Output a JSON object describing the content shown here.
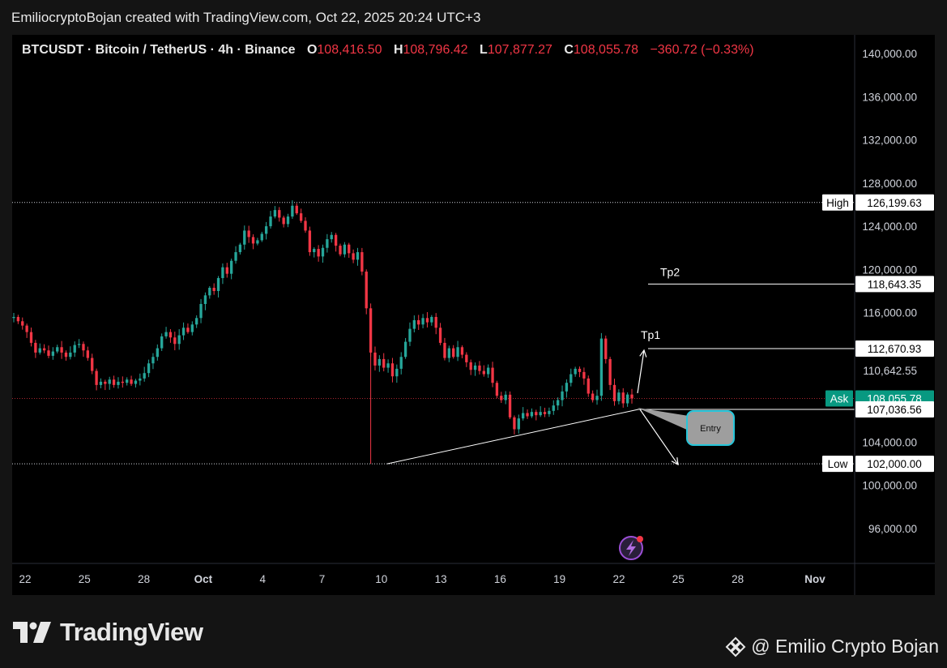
{
  "caption": "EmiliocryptoBojan created with TradingView.com, Oct 22, 2025 20:24 UTC+3",
  "legend": {
    "symbol": "BTCUSDT · Bitcoin / TetherUS · 4h · Binance",
    "o_label": "O",
    "o_value": "108,416.50",
    "h_label": "H",
    "h_value": "108,796.42",
    "l_label": "L",
    "l_value": "107,877.27",
    "c_label": "C",
    "c_value": "108,055.78",
    "change": "−360.72 (−0.33%)"
  },
  "colors": {
    "up": "#26a69a",
    "down": "#f23645",
    "background": "#000000",
    "page": "#141414",
    "ask": "#089981"
  },
  "chart_data": {
    "type": "candlestick",
    "timeframe": "4h",
    "x_ticks": [
      "22",
      "25",
      "28",
      "Oct",
      "4",
      "7",
      "10",
      "13",
      "16",
      "19",
      "22",
      "25",
      "28",
      "Nov"
    ],
    "y_ticks": [
      "140,000.00",
      "136,000.00",
      "132,000.00",
      "128,000.00",
      "124,000.00",
      "120,000.00",
      "116,000.00",
      "110,642.55",
      "104,000.00",
      "100,000.00",
      "96,000.00"
    ],
    "ylim": [
      94000,
      141500
    ],
    "closes": [
      [
        115500,
        115600
      ],
      [
        115600,
        115200
      ],
      [
        115200,
        114800
      ],
      [
        114800,
        114200
      ],
      [
        114200,
        113200
      ],
      [
        113200,
        112300
      ],
      [
        112300,
        112700
      ],
      [
        112700,
        112500
      ],
      [
        112500,
        112000
      ],
      [
        112000,
        112400
      ],
      [
        112400,
        112800
      ],
      [
        112800,
        112300
      ],
      [
        112300,
        111900
      ],
      [
        111900,
        112300
      ],
      [
        112300,
        113000
      ],
      [
        113000,
        113100
      ],
      [
        113100,
        112500
      ],
      [
        112500,
        111800
      ],
      [
        111800,
        110600
      ],
      [
        110600,
        109300
      ],
      [
        109300,
        109600
      ],
      [
        109600,
        109400
      ],
      [
        109400,
        109800
      ],
      [
        109800,
        109300
      ],
      [
        109300,
        109600
      ],
      [
        109600,
        109500
      ],
      [
        109500,
        109800
      ],
      [
        109800,
        109400
      ],
      [
        109400,
        109700
      ],
      [
        109700,
        109900
      ],
      [
        109900,
        110400
      ],
      [
        110400,
        111300
      ],
      [
        111300,
        111900
      ],
      [
        111900,
        112700
      ],
      [
        112700,
        113800
      ],
      [
        113800,
        114200
      ],
      [
        114200,
        113700
      ],
      [
        113700,
        113100
      ],
      [
        113100,
        113900
      ],
      [
        113900,
        114600
      ],
      [
        114600,
        114200
      ],
      [
        114200,
        114900
      ],
      [
        114900,
        115500
      ],
      [
        115500,
        116800
      ],
      [
        116800,
        117600
      ],
      [
        117600,
        118300
      ],
      [
        118300,
        118000
      ],
      [
        118000,
        119200
      ],
      [
        119200,
        120200
      ],
      [
        120200,
        119600
      ],
      [
        119600,
        120800
      ],
      [
        120800,
        121600
      ],
      [
        121600,
        122300
      ],
      [
        122300,
        123600
      ],
      [
        123600,
        123000
      ],
      [
        123000,
        122400
      ],
      [
        122400,
        122700
      ],
      [
        122700,
        123300
      ],
      [
        123300,
        124000
      ],
      [
        124000,
        124900
      ],
      [
        124900,
        125500
      ],
      [
        125500,
        124800
      ],
      [
        124800,
        124200
      ],
      [
        124200,
        124900
      ],
      [
        124900,
        125900
      ],
      [
        125900,
        125200
      ],
      [
        125200,
        124500
      ],
      [
        124500,
        123600
      ],
      [
        123600,
        121600
      ],
      [
        121600,
        121900
      ],
      [
        121900,
        121200
      ],
      [
        121200,
        122000
      ],
      [
        122000,
        122800
      ],
      [
        122800,
        123200
      ],
      [
        123200,
        122200
      ],
      [
        122200,
        121400
      ],
      [
        121400,
        122300
      ],
      [
        122300,
        121500
      ],
      [
        121500,
        120900
      ],
      [
        120900,
        121600
      ],
      [
        121600,
        119800
      ],
      [
        119800,
        116400
      ],
      [
        116400,
        112300
      ],
      [
        112300,
        111100
      ],
      [
        111100,
        111700
      ],
      [
        111700,
        110900
      ],
      [
        110900,
        111300
      ],
      [
        111300,
        110100
      ],
      [
        110100,
        110800
      ],
      [
        110800,
        111900
      ],
      [
        111900,
        113300
      ],
      [
        113300,
        114500
      ],
      [
        114500,
        115300
      ],
      [
        115300,
        114900
      ],
      [
        114900,
        115500
      ],
      [
        115500,
        115100
      ],
      [
        115100,
        115600
      ],
      [
        115600,
        114600
      ],
      [
        114600,
        113200
      ],
      [
        113200,
        111800
      ],
      [
        111800,
        112700
      ],
      [
        112700,
        111900
      ],
      [
        111900,
        112800
      ],
      [
        112800,
        112100
      ],
      [
        112100,
        111400
      ],
      [
        111400,
        110700
      ],
      [
        110700,
        111100
      ],
      [
        111100,
        110600
      ],
      [
        110600,
        110300
      ],
      [
        110300,
        110900
      ],
      [
        110900,
        109500
      ],
      [
        109500,
        108300
      ],
      [
        108300,
        107900
      ],
      [
        107900,
        108400
      ],
      [
        108400,
        106300
      ],
      [
        106300,
        105200
      ],
      [
        105200,
        106200
      ],
      [
        106200,
        106700
      ],
      [
        106700,
        106400
      ],
      [
        106400,
        106800
      ],
      [
        106800,
        106500
      ],
      [
        106500,
        106800
      ],
      [
        106800,
        106600
      ],
      [
        106600,
        106900
      ],
      [
        106900,
        107400
      ],
      [
        107400,
        107900
      ],
      [
        107900,
        108700
      ],
      [
        108700,
        109500
      ],
      [
        109500,
        110300
      ],
      [
        110300,
        110800
      ],
      [
        110800,
        110500
      ],
      [
        110500,
        109900
      ],
      [
        109900,
        108500
      ],
      [
        108500,
        107900
      ],
      [
        107900,
        108300
      ],
      [
        108300,
        113600
      ],
      [
        113600,
        111700
      ],
      [
        111700,
        109300
      ],
      [
        109300,
        107800
      ],
      [
        107800,
        108600
      ],
      [
        108600,
        107600
      ],
      [
        107600,
        108416
      ],
      [
        108416,
        108056
      ]
    ],
    "price_lines": [
      {
        "label": "High",
        "value": 126199.63,
        "text": "126,199.63",
        "style": "dotted"
      },
      {
        "label": "Low",
        "value": 102000.0,
        "text": "102,000.00",
        "style": "dotted"
      },
      {
        "label": "Ask",
        "value": 108055.78,
        "text": "108,055.78",
        "style": "dotted-red"
      }
    ],
    "annotations": {
      "tp2": {
        "label": "Tp2",
        "value": 118643.35,
        "text": "118,643.35"
      },
      "tp1": {
        "label": "Tp1",
        "value": 112670.93,
        "text": "112,670.93"
      },
      "entry": {
        "label": "Entry",
        "value": 107036.56,
        "text": "107,036.56"
      }
    },
    "grid": false
  },
  "brand": {
    "name": "TradingView"
  },
  "author": {
    "name": "@ Emilio Crypto Bojan"
  }
}
